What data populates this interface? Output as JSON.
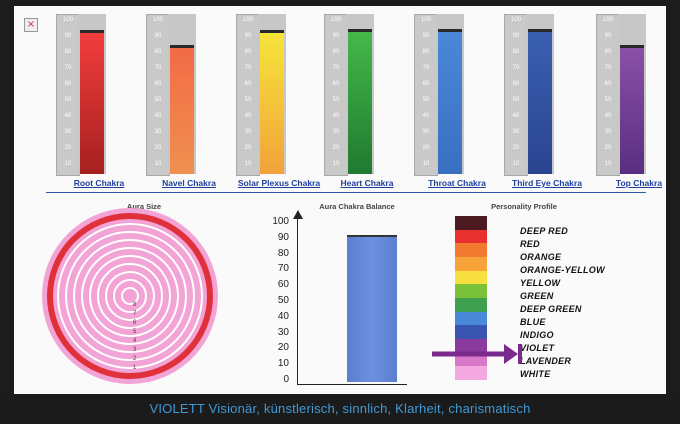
{
  "close_icon_glyph": "×",
  "chakras": [
    {
      "label": "Root Chakra",
      "value": 88,
      "color_top": "#f23d3d",
      "color_bottom": "#a62020"
    },
    {
      "label": "Navel Chakra",
      "value": 79,
      "color_top": "#f26b45",
      "color_bottom": "#f09050"
    },
    {
      "label": "Solar Plexus Chakra",
      "value": 88,
      "color_top": "#f6e53a",
      "color_bottom": "#f2a23a"
    },
    {
      "label": "Heart Chakra",
      "value": 89,
      "color_top": "#45b84a",
      "color_bottom": "#1f7a30"
    },
    {
      "label": "Throat Chakra",
      "value": 89,
      "color_top": "#4a88d8",
      "color_bottom": "#3a6fc0"
    },
    {
      "label": "Third Eye Chakra",
      "value": 89,
      "color_top": "#3a5fb0",
      "color_bottom": "#2a4490"
    },
    {
      "label": "Top Chakra",
      "value": 79,
      "color_top": "#8a50a8",
      "color_bottom": "#5a2e80"
    }
  ],
  "scale_labels": [
    "100",
    "90",
    "80",
    "70",
    "60",
    "50",
    "40",
    "30",
    "20",
    "10"
  ],
  "sections": {
    "aura_size": "Aura Size",
    "aura_balance": "Aura Chakra Balance",
    "personality": "Personality Profile"
  },
  "aura": {
    "ring_labels": [
      "8",
      "7",
      "6",
      "5",
      "4",
      "3",
      "2",
      "1"
    ],
    "highlight_ring": "outer"
  },
  "balance": {
    "value": 92,
    "y_ticks": [
      "100",
      "90",
      "80",
      "70",
      "60",
      "50",
      "40",
      "30",
      "20",
      "10",
      "0"
    ]
  },
  "personality": {
    "labels": [
      "DEEP RED",
      "RED",
      "ORANGE",
      "ORANGE-YELLOW",
      "YELLOW",
      "GREEN",
      "DEEP GREEN",
      "BLUE",
      "INDIGO",
      "VIOLET",
      "LAVENDER",
      "WHITE"
    ],
    "colors": [
      "#4a1a20",
      "#e83030",
      "#f27a30",
      "#f7a33a",
      "#f7e040",
      "#7ac23a",
      "#3fa050",
      "#4a88d8",
      "#3a55b0",
      "#8a3a9c",
      "#d878c8",
      "#f4a8e0"
    ],
    "selected": "VIOLET"
  },
  "status_text": "VIOLETT  Visionär, künstlerisch, sinnlich, Klarheit, charismatisch"
}
